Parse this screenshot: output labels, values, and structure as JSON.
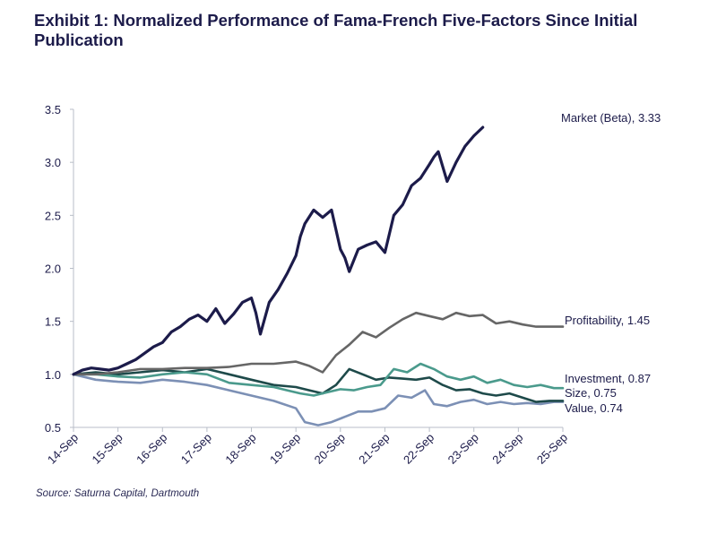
{
  "title": "Exhibit 1: Normalized Performance of Fama-French Five-Factors Since Initial Publication",
  "source": "Source: Saturna Capital, Dartmouth",
  "chart_data": {
    "type": "line",
    "x_ticks": [
      "14-Sep",
      "15-Sep",
      "16-Sep",
      "17-Sep",
      "18-Sep",
      "19-Sep",
      "20-Sep",
      "21-Sep",
      "22-Sep",
      "23-Sep",
      "24-Sep",
      "25-Sep"
    ],
    "x_range": [
      2014,
      2025
    ],
    "y_ticks": [
      "0.5",
      "1.0",
      "1.5",
      "2.0",
      "2.5",
      "3.0",
      "3.5"
    ],
    "ylim": [
      0.5,
      3.5
    ],
    "grid": false,
    "series": [
      {
        "name": "Market (Beta)",
        "end_label": "Market (Beta), 3.33",
        "color": "#1c1b4a",
        "x": [
          2014.0,
          2014.2,
          2014.4,
          2014.6,
          2014.8,
          2015.0,
          2015.2,
          2015.4,
          2015.6,
          2015.8,
          2016.0,
          2016.2,
          2016.4,
          2016.6,
          2016.8,
          2017.0,
          2017.2,
          2017.4,
          2017.6,
          2017.8,
          2018.0,
          2018.1,
          2018.2,
          2018.4,
          2018.6,
          2018.8,
          2019.0,
          2019.1,
          2019.2,
          2019.4,
          2019.6,
          2019.8,
          2020.0,
          2020.1,
          2020.2,
          2020.4,
          2020.6,
          2020.8,
          2021.0,
          2021.2,
          2021.4,
          2021.6,
          2021.8,
          2022.0,
          2022.1,
          2022.2,
          2022.4,
          2022.6,
          2022.8,
          2023.0,
          2023.2,
          2023.4,
          2023.6,
          2023.8,
          2024.0,
          2024.1,
          2024.2,
          2024.4,
          2024.6,
          2024.8,
          2025.0
        ],
        "y": [
          1.0,
          1.04,
          1.06,
          1.05,
          1.04,
          1.06,
          1.1,
          1.14,
          1.2,
          1.26,
          1.3,
          1.4,
          1.45,
          1.52,
          1.56,
          1.5,
          1.62,
          1.48,
          1.57,
          1.68,
          1.72,
          1.58,
          1.38,
          1.68,
          1.8,
          1.95,
          2.12,
          2.3,
          2.42,
          2.55,
          2.48,
          2.55,
          2.18,
          2.1,
          1.97,
          2.18,
          2.22,
          2.25,
          2.15,
          2.5,
          2.6,
          2.78,
          2.85,
          2.98,
          3.05,
          3.1,
          2.82,
          3.0,
          3.15,
          3.25,
          3.33,
          null,
          null,
          null,
          null,
          null,
          null,
          null,
          null,
          null,
          null
        ]
      },
      {
        "name": "Profitability",
        "end_label": "Profitability, 1.45",
        "color": "#666666",
        "x": [
          2014.0,
          2014.5,
          2015.0,
          2015.5,
          2016.0,
          2016.5,
          2017.0,
          2017.5,
          2018.0,
          2018.5,
          2019.0,
          2019.3,
          2019.6,
          2019.9,
          2020.2,
          2020.5,
          2020.8,
          2021.1,
          2021.4,
          2021.7,
          2022.0,
          2022.3,
          2022.6,
          2022.9,
          2023.2,
          2023.5,
          2023.8,
          2024.1,
          2024.4,
          2024.7,
          2025.0
        ],
        "y": [
          1.0,
          1.0,
          1.02,
          1.05,
          1.05,
          1.06,
          1.06,
          1.07,
          1.1,
          1.1,
          1.12,
          1.08,
          1.02,
          1.18,
          1.28,
          1.4,
          1.35,
          1.44,
          1.52,
          1.58,
          1.55,
          1.52,
          1.58,
          1.55,
          1.56,
          1.48,
          1.5,
          1.47,
          1.45,
          1.45,
          1.45
        ]
      },
      {
        "name": "Investment",
        "end_label": "Investment, 0.87",
        "color": "#4a9a8c",
        "x": [
          2014.0,
          2014.5,
          2015.0,
          2015.5,
          2016.0,
          2016.5,
          2017.0,
          2017.5,
          2018.0,
          2018.5,
          2018.8,
          2019.1,
          2019.4,
          2019.7,
          2020.0,
          2020.3,
          2020.6,
          2020.9,
          2021.2,
          2021.5,
          2021.8,
          2022.1,
          2022.4,
          2022.7,
          2023.0,
          2023.3,
          2023.6,
          2023.9,
          2024.2,
          2024.5,
          2024.8,
          2025.0
        ],
        "y": [
          1.0,
          1.0,
          0.98,
          0.97,
          1.0,
          1.02,
          1.0,
          0.92,
          0.9,
          0.88,
          0.85,
          0.82,
          0.8,
          0.83,
          0.86,
          0.85,
          0.88,
          0.9,
          1.05,
          1.02,
          1.1,
          1.05,
          0.98,
          0.95,
          0.98,
          0.92,
          0.95,
          0.9,
          0.88,
          0.9,
          0.87,
          0.87
        ]
      },
      {
        "name": "Size",
        "end_label": "Size, 0.75",
        "color": "#1e4a4a",
        "x": [
          2014.0,
          2014.5,
          2015.0,
          2015.5,
          2016.0,
          2016.5,
          2017.0,
          2017.5,
          2018.0,
          2018.5,
          2019.0,
          2019.3,
          2019.6,
          2019.9,
          2020.2,
          2020.5,
          2020.8,
          2021.1,
          2021.4,
          2021.7,
          2022.0,
          2022.3,
          2022.6,
          2022.9,
          2023.2,
          2023.5,
          2023.8,
          2024.1,
          2024.4,
          2024.7,
          2025.0
        ],
        "y": [
          1.0,
          1.02,
          1.0,
          1.02,
          1.04,
          1.02,
          1.05,
          1.0,
          0.95,
          0.9,
          0.88,
          0.85,
          0.82,
          0.9,
          1.05,
          1.0,
          0.95,
          0.97,
          0.96,
          0.95,
          0.97,
          0.9,
          0.85,
          0.86,
          0.82,
          0.8,
          0.82,
          0.78,
          0.74,
          0.75,
          0.75
        ]
      },
      {
        "name": "Value",
        "end_label": "Value, 0.74",
        "color": "#7c90b5",
        "x": [
          2014.0,
          2014.5,
          2015.0,
          2015.5,
          2016.0,
          2016.5,
          2017.0,
          2017.5,
          2018.0,
          2018.5,
          2019.0,
          2019.2,
          2019.5,
          2019.8,
          2020.1,
          2020.4,
          2020.7,
          2021.0,
          2021.3,
          2021.6,
          2021.9,
          2022.1,
          2022.4,
          2022.7,
          2023.0,
          2023.3,
          2023.6,
          2023.9,
          2024.2,
          2024.5,
          2024.8,
          2025.0
        ],
        "y": [
          1.0,
          0.95,
          0.93,
          0.92,
          0.95,
          0.93,
          0.9,
          0.85,
          0.8,
          0.75,
          0.68,
          0.55,
          0.52,
          0.55,
          0.6,
          0.65,
          0.65,
          0.68,
          0.8,
          0.78,
          0.85,
          0.72,
          0.7,
          0.74,
          0.76,
          0.72,
          0.74,
          0.72,
          0.73,
          0.72,
          0.74,
          0.74
        ]
      }
    ]
  }
}
